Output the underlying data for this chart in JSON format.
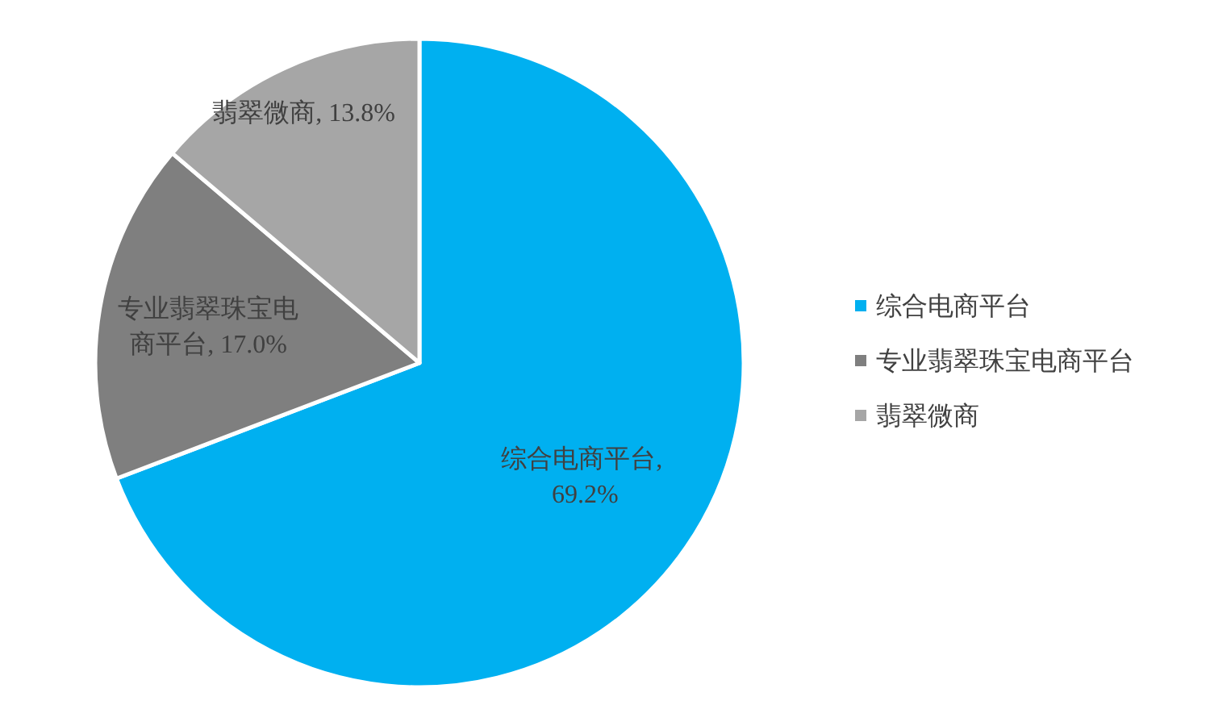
{
  "chart_data": {
    "type": "pie",
    "categories": [
      "综合电商平台",
      "专业翡翠珠宝电商平台",
      "翡翠微商"
    ],
    "values": [
      69.2,
      17.0,
      13.8
    ],
    "value_labels": [
      "综合电商平台, 69.2%",
      "专业翡翠珠宝电商平台, 17.0%",
      "翡翠微商, 13.8%"
    ],
    "colors": [
      "#00b0f0",
      "#7f7f7f",
      "#a6a6a6"
    ],
    "legend": "right"
  }
}
